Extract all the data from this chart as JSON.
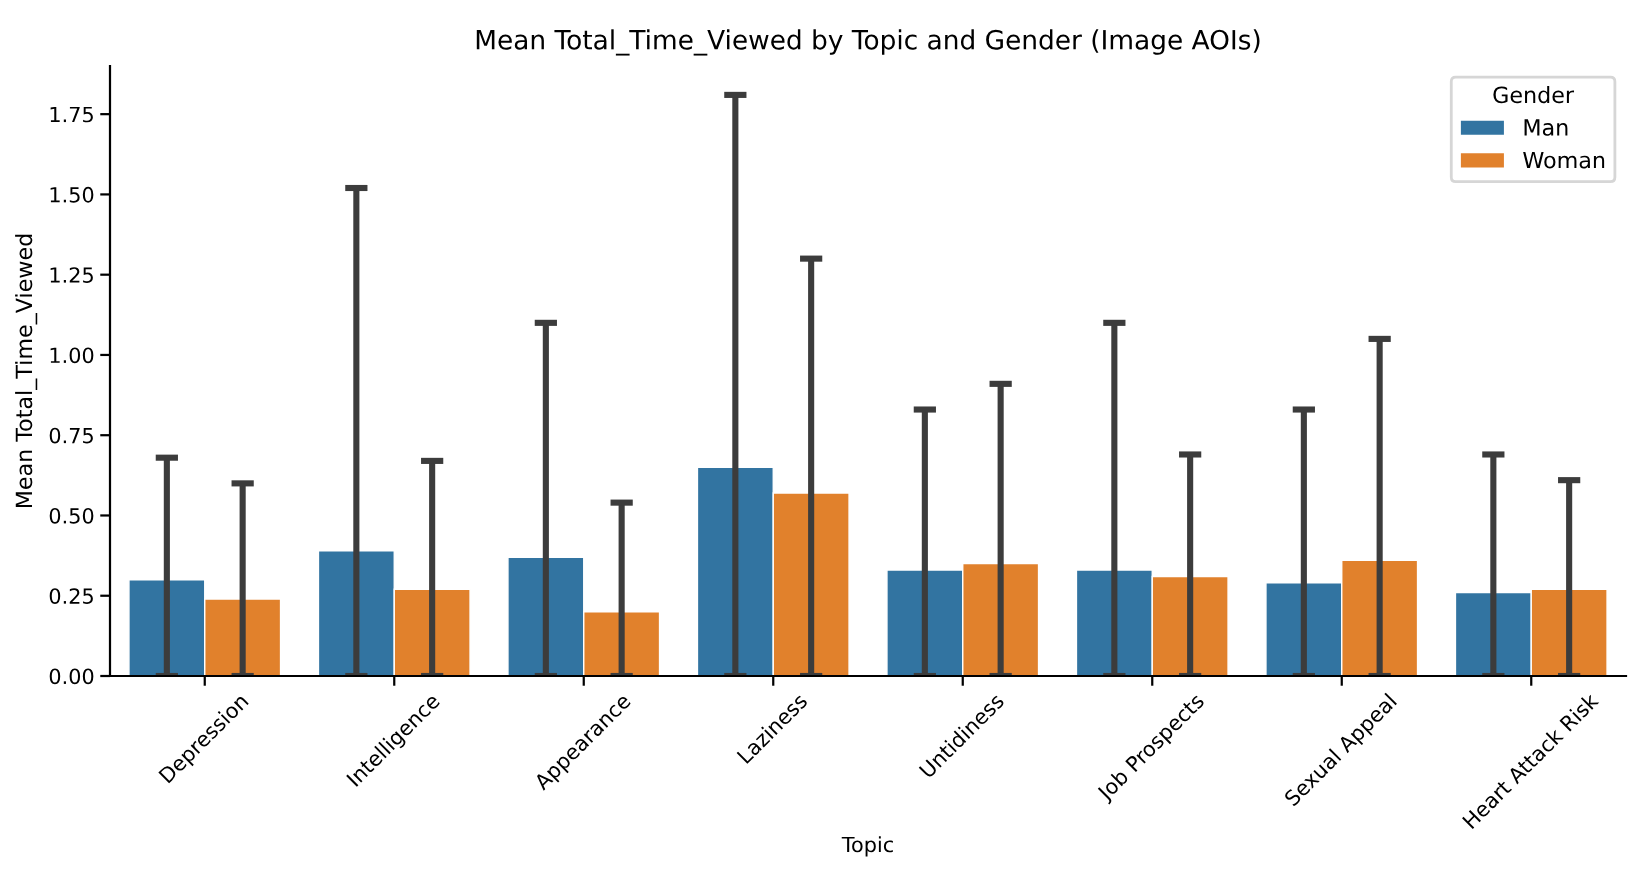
{
  "chart_data": {
    "type": "bar",
    "title": "Mean Total_Time_Viewed by Topic and Gender (Image AOIs)",
    "xlabel": "Topic",
    "ylabel": "Mean Total_Time_Viewed",
    "legend_title": "Gender",
    "legend": "top right",
    "grid": false,
    "categories": [
      "Depression",
      "Intelligence",
      "Appearance",
      "Laziness",
      "Untidiness",
      "Job Prospects",
      "Sexual Appeal",
      "Heart Attack Risk"
    ],
    "ylim": [
      0,
      1.9
    ],
    "yticks": [
      {
        "value": 0,
        "label": "0.00"
      },
      {
        "value": 0.25,
        "label": "0.25"
      },
      {
        "value": 0.5,
        "label": "0.50"
      },
      {
        "value": 0.75,
        "label": "0.75"
      },
      {
        "value": 1,
        "label": "1.00"
      },
      {
        "value": 1.25,
        "label": "1.25"
      },
      {
        "value": 1.5,
        "label": "1.50"
      },
      {
        "value": 1.75,
        "label": "1.75"
      }
    ],
    "series": [
      {
        "name": "Man",
        "color": "#3274a1",
        "values": [
          0.3,
          0.39,
          0.37,
          0.65,
          0.33,
          0.33,
          0.29,
          0.26
        ],
        "errors": [
          [
            0,
            0.68
          ],
          [
            0,
            1.52
          ],
          [
            0,
            1.1
          ],
          [
            0,
            1.81
          ],
          [
            0,
            0.83
          ],
          [
            0,
            1.1
          ],
          [
            0,
            0.83
          ],
          [
            0,
            0.69
          ]
        ]
      },
      {
        "name": "Woman",
        "color": "#e1812c",
        "values": [
          0.24,
          0.27,
          0.2,
          0.57,
          0.35,
          0.31,
          0.36,
          0.27
        ],
        "errors": [
          [
            0,
            0.6
          ],
          [
            0,
            0.67
          ],
          [
            0,
            0.54
          ],
          [
            0,
            1.3
          ],
          [
            0,
            0.91
          ],
          [
            0,
            0.69
          ],
          [
            0,
            1.05
          ],
          [
            0,
            0.61
          ]
        ]
      }
    ]
  }
}
